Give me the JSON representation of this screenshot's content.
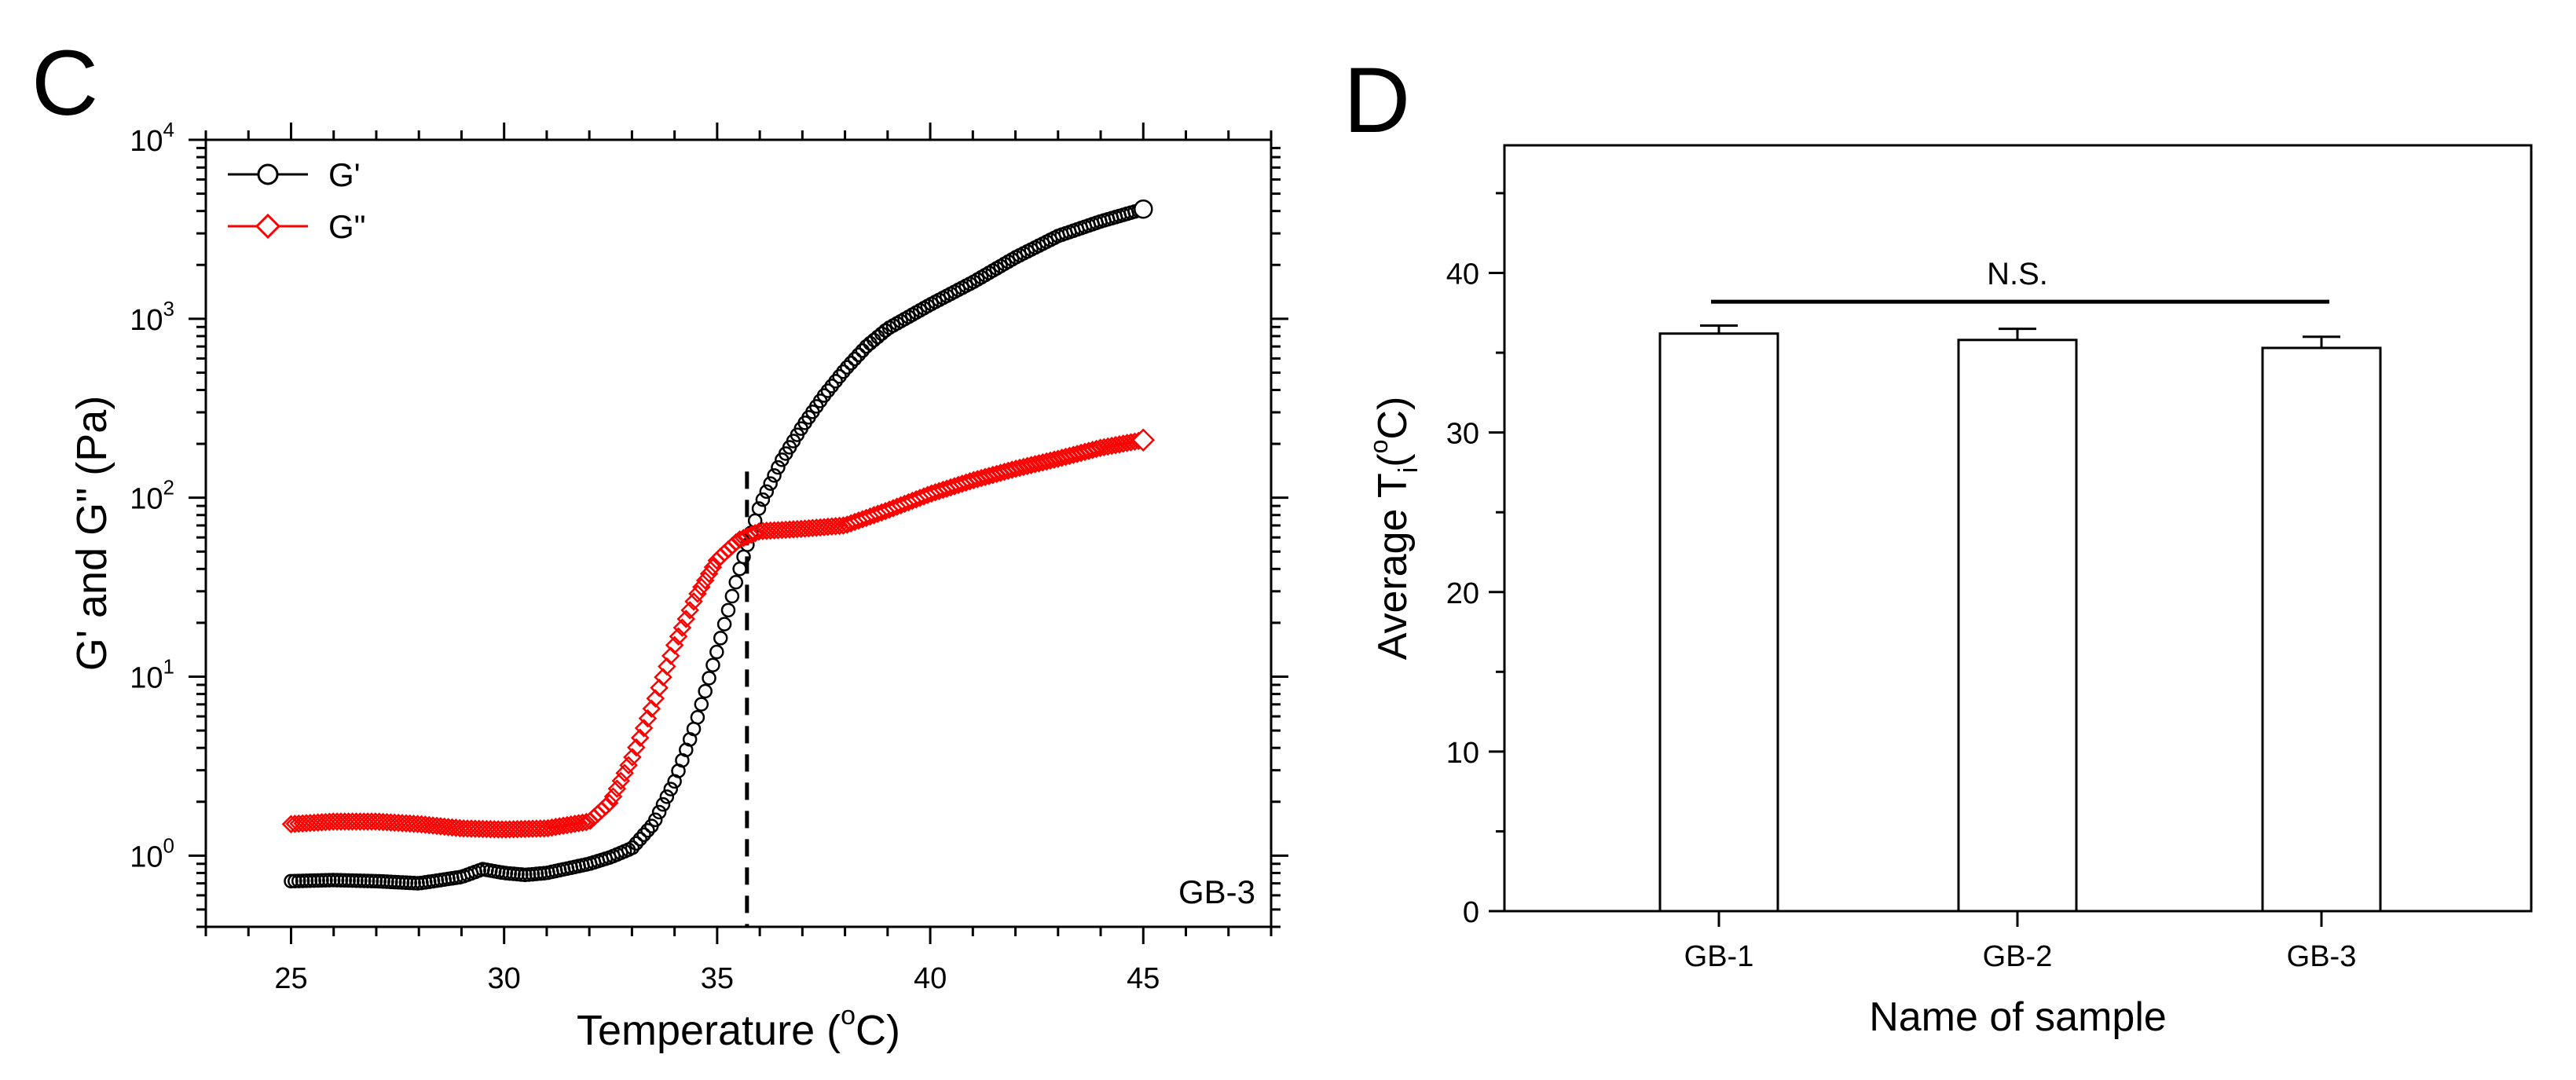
{
  "chart_data": [
    {
      "panel_label": "C",
      "type": "line",
      "xlabel": "Temperature (°C)",
      "xlabel_parts": [
        "Temperature (",
        "o",
        "C)"
      ],
      "ylabel": "G' and G\" (Pa)",
      "xlim": [
        23,
        48
      ],
      "ylim": [
        0.4,
        10000
      ],
      "yscale": "log",
      "xticks": [
        25,
        30,
        35,
        40,
        45
      ],
      "yticks": [
        {
          "value": 1,
          "base": "10",
          "exp": "0"
        },
        {
          "value": 10,
          "base": "10",
          "exp": "1"
        },
        {
          "value": 100,
          "base": "10",
          "exp": "2"
        },
        {
          "value": 1000,
          "base": "10",
          "exp": "3"
        },
        {
          "value": 10000,
          "base": "10",
          "exp": "4"
        }
      ],
      "legend_position": "top-left",
      "annotation": "GB-3",
      "crossover_x": 35.7,
      "series": [
        {
          "name": "G'",
          "color": "#000000",
          "marker": "circle",
          "points": [
            [
              25,
              0.72
            ],
            [
              26,
              0.73
            ],
            [
              27,
              0.72
            ],
            [
              28,
              0.7
            ],
            [
              29,
              0.76
            ],
            [
              29.5,
              0.84
            ],
            [
              30,
              0.8
            ],
            [
              30.5,
              0.78
            ],
            [
              31,
              0.8
            ],
            [
              32,
              0.9
            ],
            [
              32.5,
              0.98
            ],
            [
              33,
              1.1
            ],
            [
              33.5,
              1.5
            ],
            [
              34,
              2.6
            ],
            [
              34.5,
              5.5
            ],
            [
              35,
              14
            ],
            [
              35.5,
              38
            ],
            [
              36,
              90
            ],
            [
              36.5,
              160
            ],
            [
              37,
              250
            ],
            [
              37.5,
              370
            ],
            [
              38,
              520
            ],
            [
              38.5,
              700
            ],
            [
              39,
              880
            ],
            [
              40,
              1200
            ],
            [
              41,
              1600
            ],
            [
              42,
              2200
            ],
            [
              43,
              2900
            ],
            [
              44,
              3500
            ],
            [
              45,
              4100
            ]
          ]
        },
        {
          "name": "G\"",
          "color": "#ff0000",
          "marker": "diamond",
          "points": [
            [
              25,
              1.5
            ],
            [
              26,
              1.55
            ],
            [
              27,
              1.55
            ],
            [
              28,
              1.5
            ],
            [
              29,
              1.42
            ],
            [
              30,
              1.4
            ],
            [
              31,
              1.42
            ],
            [
              32,
              1.55
            ],
            [
              32.5,
              2.0
            ],
            [
              33,
              3.5
            ],
            [
              33.5,
              7
            ],
            [
              34,
              15
            ],
            [
              34.5,
              28
            ],
            [
              35,
              45
            ],
            [
              35.5,
              58
            ],
            [
              36,
              65
            ],
            [
              37,
              67
            ],
            [
              38,
              70
            ],
            [
              39,
              85
            ],
            [
              40,
              105
            ],
            [
              41,
              125
            ],
            [
              42,
              145
            ],
            [
              43,
              165
            ],
            [
              44,
              190
            ],
            [
              45,
              210
            ]
          ]
        }
      ]
    },
    {
      "panel_label": "D",
      "type": "bar",
      "xlabel": "Name of sample",
      "ylabel": "Average Ti(°C)",
      "ylabel_parts": [
        "Average T",
        "i",
        "(",
        "o",
        "C)"
      ],
      "categories": [
        "GB-1",
        "GB-2",
        "GB-3"
      ],
      "values": [
        36.2,
        35.8,
        35.3
      ],
      "errors": [
        0.5,
        0.7,
        0.7
      ],
      "ylim": [
        0,
        48
      ],
      "yticks": [
        0,
        10,
        20,
        30,
        40
      ],
      "significance": {
        "label": "N.S.",
        "value": 38.2
      }
    }
  ]
}
